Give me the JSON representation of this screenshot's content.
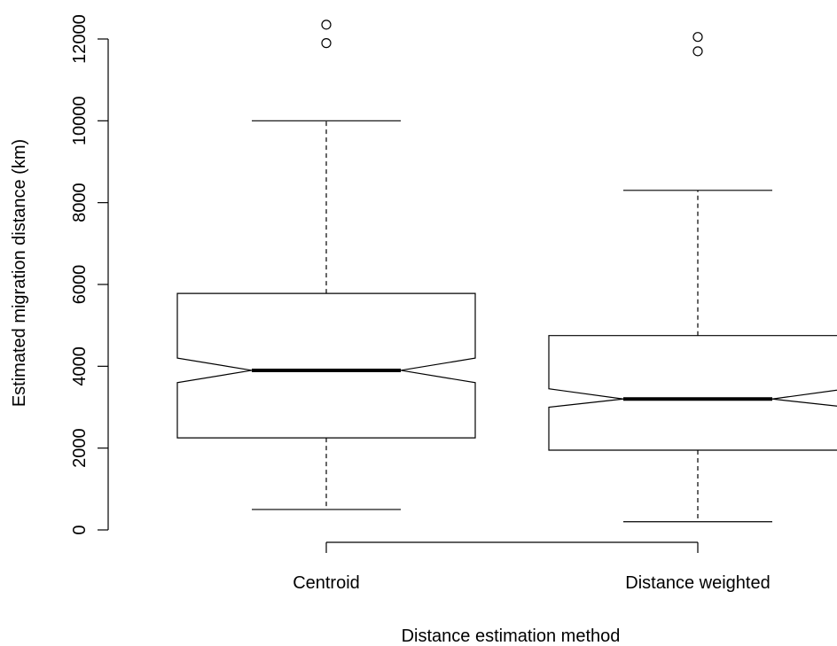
{
  "chart_data": {
    "type": "boxplot",
    "title": "",
    "xlabel": "Distance estimation method",
    "ylabel": "Estimated migration distance (km)",
    "ylim": [
      0,
      12500
    ],
    "yticks": [
      0,
      2000,
      4000,
      6000,
      8000,
      10000,
      12000
    ],
    "notched": true,
    "grid": false,
    "categories": [
      "Centroid",
      "Distance weighted"
    ],
    "series": [
      {
        "category": "Centroid",
        "whisker_low": 500,
        "q1": 2250,
        "notch_low": 3600,
        "median": 3900,
        "notch_high": 4200,
        "q3": 5780,
        "whisker_high": 10000,
        "outliers": [
          11900,
          12350
        ]
      },
      {
        "category": "Distance weighted",
        "whisker_low": 200,
        "q1": 1950,
        "notch_low": 3000,
        "median": 3200,
        "notch_high": 3450,
        "q3": 4750,
        "whisker_high": 8300,
        "outliers": [
          11700,
          12050
        ]
      }
    ]
  }
}
